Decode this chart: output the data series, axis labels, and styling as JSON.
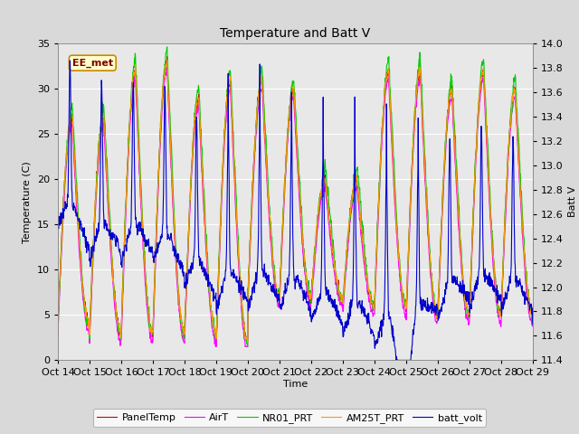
{
  "title": "Temperature and Batt V",
  "xlabel": "Time",
  "ylabel_left": "Temperature (C)",
  "ylabel_right": "Batt V",
  "annotation": "EE_met",
  "x_tick_labels": [
    "Oct 14",
    "Oct 15",
    "Oct 16",
    "Oct 17",
    "Oct 18",
    "Oct 19",
    "Oct 20",
    "Oct 21",
    "Oct 22",
    "Oct 23",
    "Oct 24",
    "Oct 25",
    "Oct 26",
    "Oct 27",
    "Oct 28",
    "Oct 29"
  ],
  "ylim_left": [
    0,
    35
  ],
  "ylim_right": [
    11.4,
    14.0
  ],
  "yticks_left": [
    0,
    5,
    10,
    15,
    20,
    25,
    30,
    35
  ],
  "yticks_right": [
    11.4,
    11.6,
    11.8,
    12.0,
    12.2,
    12.4,
    12.6,
    12.8,
    13.0,
    13.2,
    13.4,
    13.6,
    13.8,
    14.0
  ],
  "colors": {
    "PanelTemp": "#cc0000",
    "AirT": "#ff00ff",
    "NR01_PRT": "#00cc00",
    "AM25T_PRT": "#ff9900",
    "batt_volt": "#0000cc"
  },
  "legend_entries": [
    "PanelTemp",
    "AirT",
    "NR01_PRT",
    "AM25T_PRT",
    "batt_volt"
  ],
  "bg_color": "#d9d9d9",
  "plot_bg_color": "#e8e8e8",
  "grid_color": "#ffffff",
  "n_points": 1440
}
